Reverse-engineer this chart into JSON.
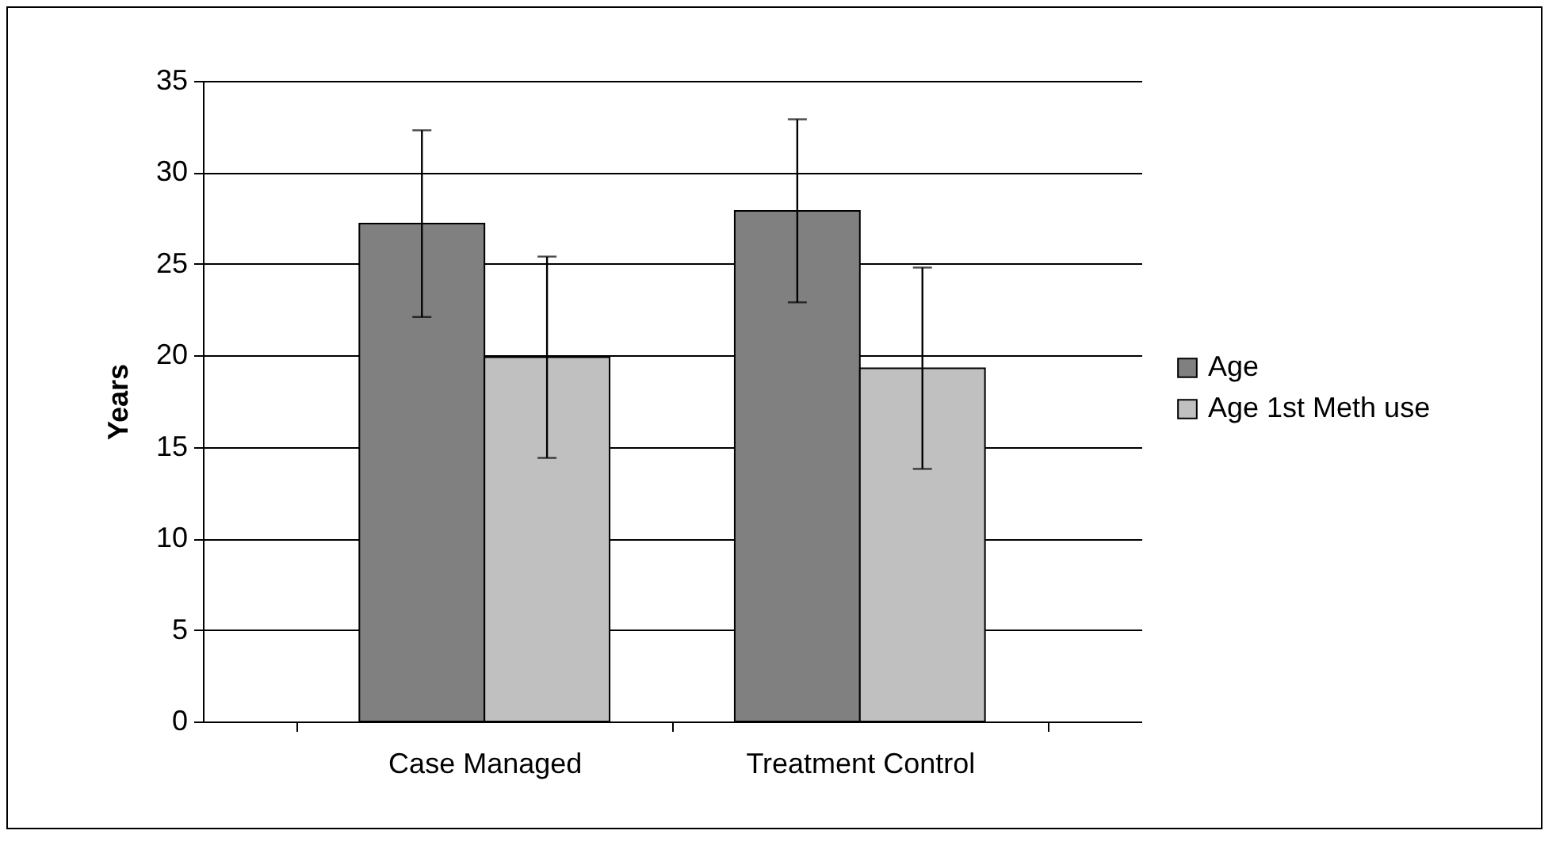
{
  "chart_data": {
    "type": "bar",
    "ylabel": "Years",
    "categories": [
      "Case Managed",
      "Treatment Control"
    ],
    "series": [
      {
        "name": "Age",
        "color": "#808080",
        "values": [
          27.2,
          27.9
        ],
        "errors": [
          5.1,
          5.0
        ]
      },
      {
        "name": "Age 1st Meth use",
        "color": "#c0c0c0",
        "values": [
          19.9,
          19.3
        ],
        "errors": [
          5.5,
          5.5
        ]
      }
    ],
    "ylim": [
      0,
      35
    ],
    "yticks": [
      0,
      5,
      10,
      15,
      20,
      25,
      30,
      35
    ],
    "grid": "y",
    "legend": "right"
  }
}
